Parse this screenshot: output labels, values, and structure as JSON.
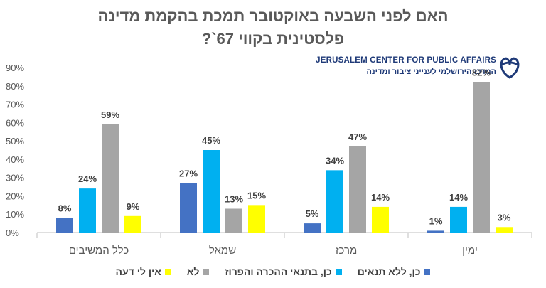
{
  "title_line1": "האם לפני השבעה באוקטובר תמכת בהקמת מדינה",
  "title_line2": "פלסטינית בקווי 67`?",
  "logo": {
    "line1": "JERUSALEM CENTER FOR PUBLIC AFFAIRS",
    "line2": "המרכז הירושלמי לענייני ציבור ומדינה"
  },
  "chart_data": {
    "type": "bar",
    "categories": [
      "ימין",
      "מרכז",
      "שמאל",
      "כלל המשיבים"
    ],
    "series": [
      {
        "name": "כן, ללא תנאים",
        "color": "#4472C4",
        "values": [
          1,
          5,
          27,
          8
        ]
      },
      {
        "name": "כן, בתנאי ההכרה והפרוז",
        "color": "#00B0F0",
        "values": [
          14,
          34,
          45,
          24
        ]
      },
      {
        "name": "לא",
        "color": "#A5A5A5",
        "values": [
          82,
          47,
          13,
          59
        ]
      },
      {
        "name": "אין לי דעה",
        "color": "#FFFF00",
        "values": [
          3,
          14,
          15,
          9
        ]
      }
    ],
    "ylim": [
      0,
      90
    ],
    "yticks": [
      "0%",
      "10%",
      "20%",
      "30%",
      "40%",
      "50%",
      "60%",
      "70%",
      "80%",
      "90%"
    ],
    "value_suffix": "%",
    "grid": false,
    "legend_position": "bottom"
  }
}
